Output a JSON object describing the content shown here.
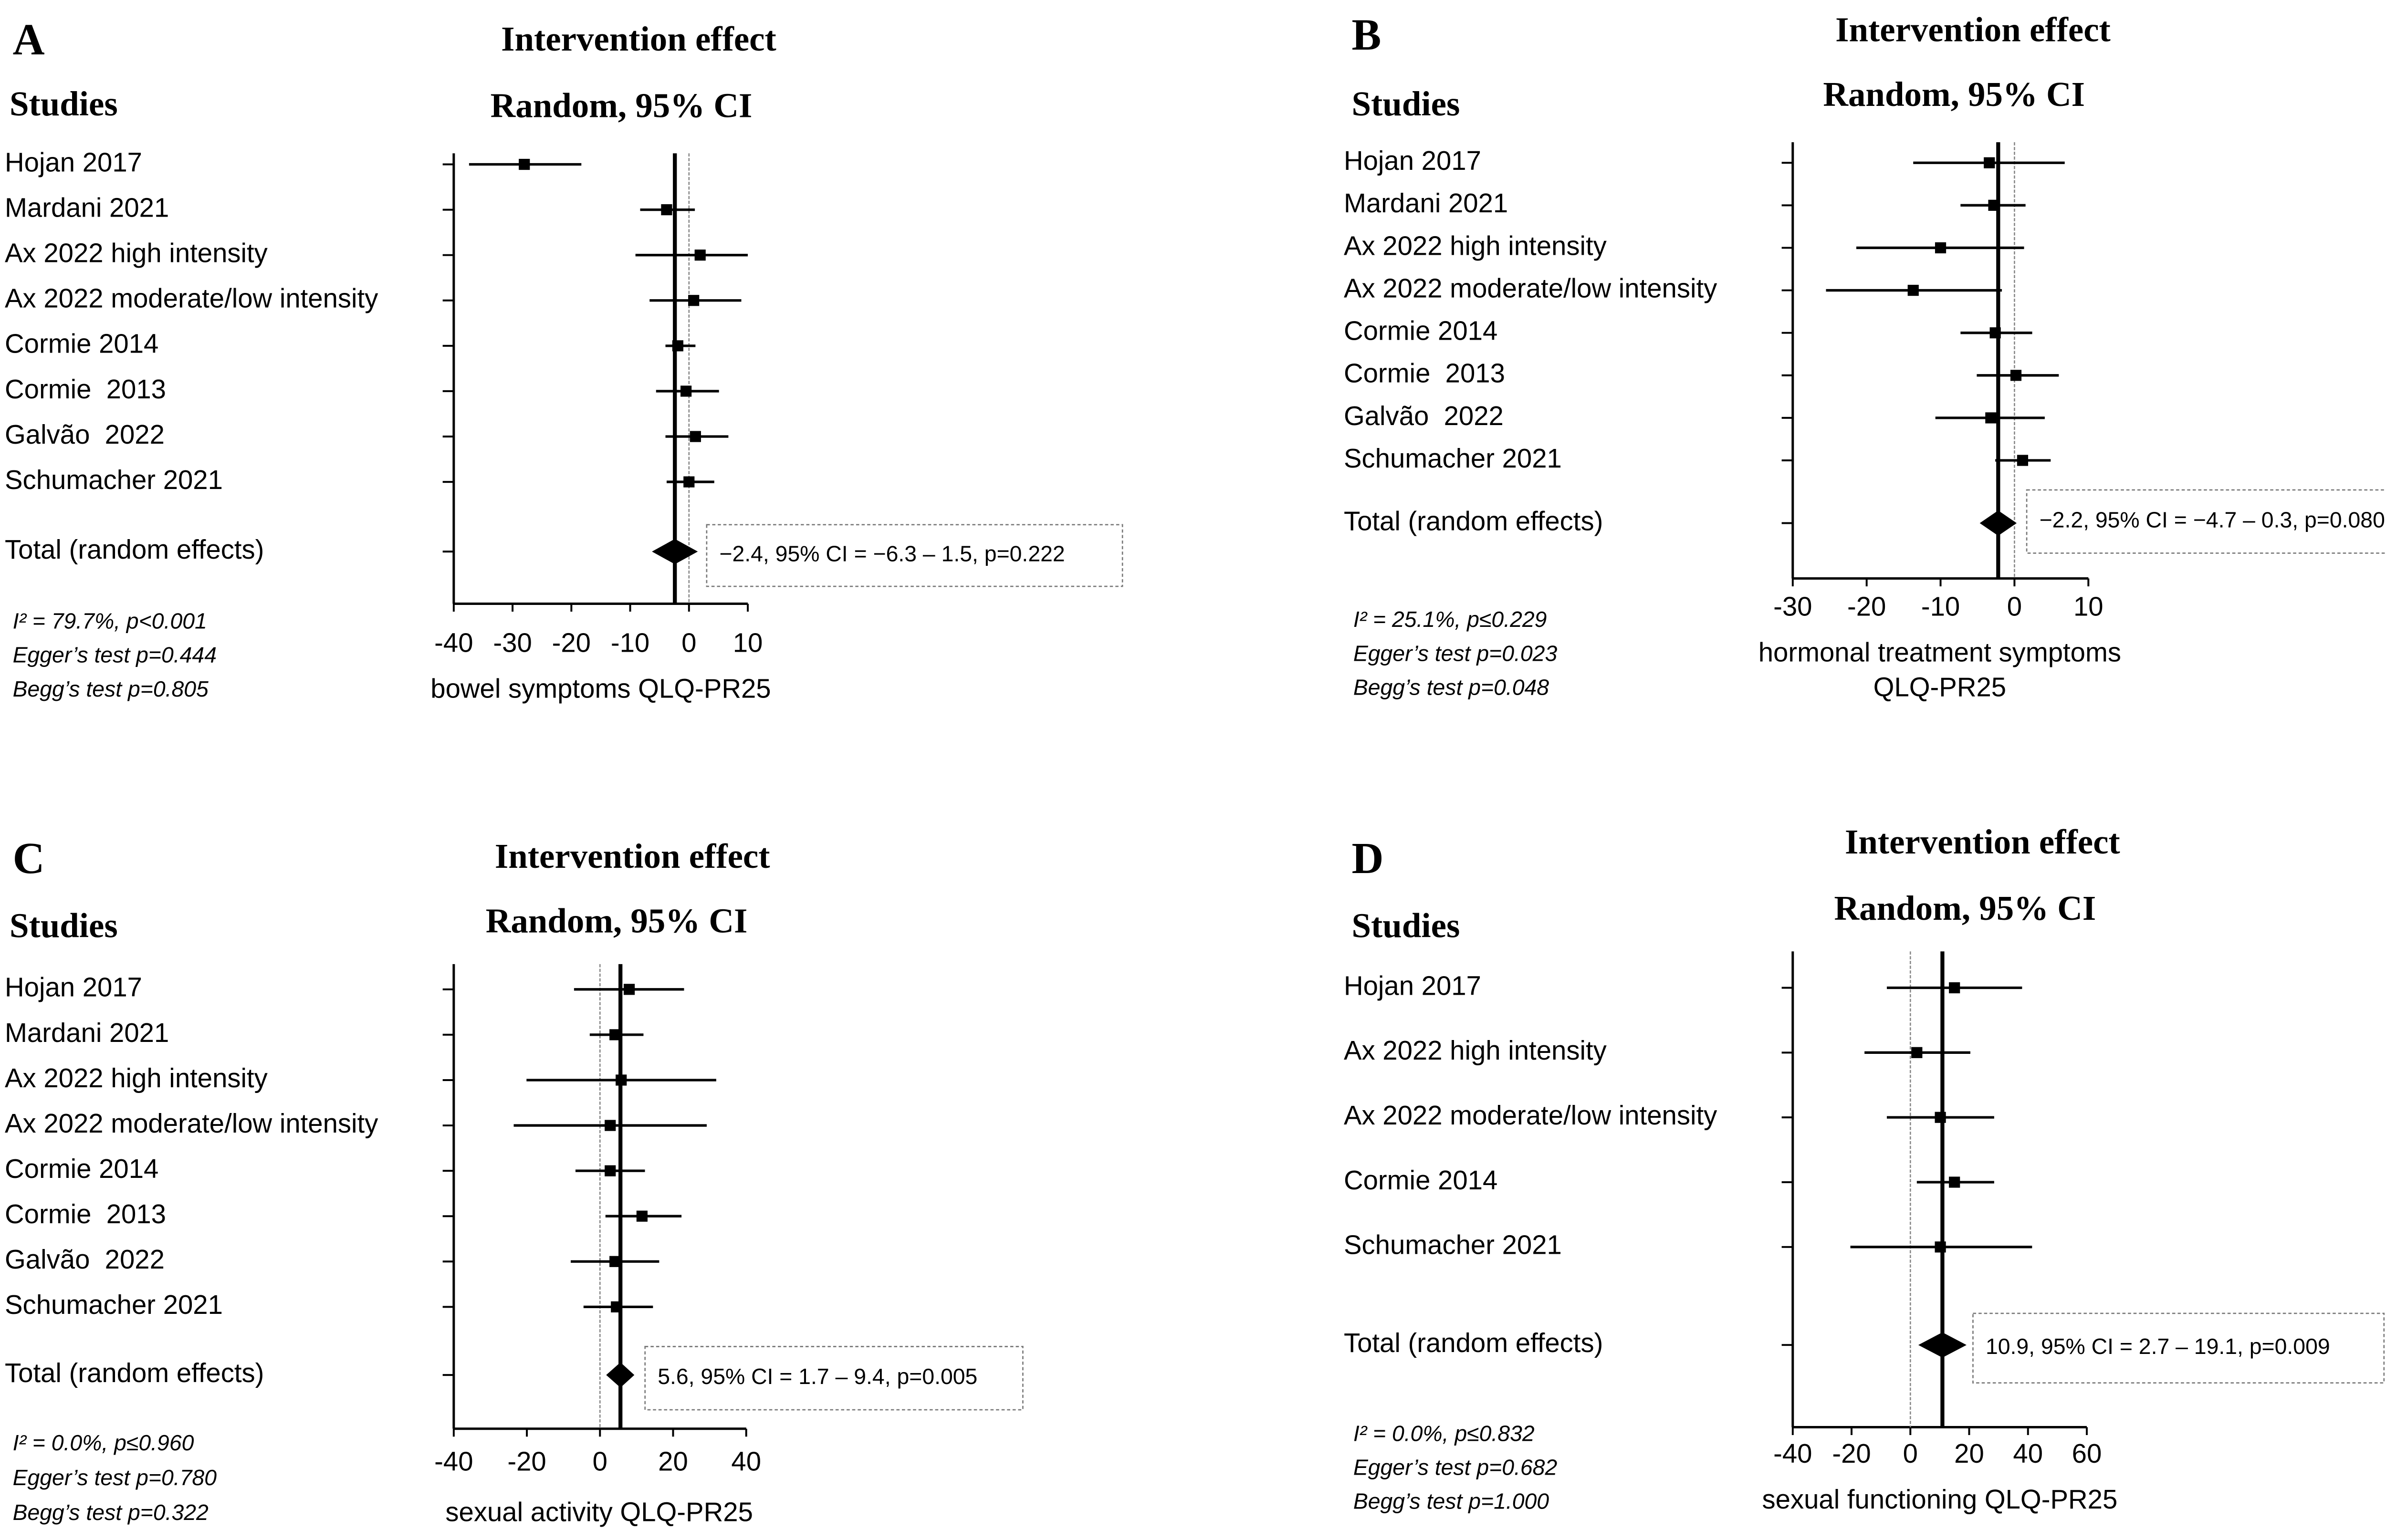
{
  "chart_data": [
    {
      "type": "forest",
      "label": "A",
      "title": "Intervention effect",
      "subtitle": "Random, 95% CI",
      "studies_header": "Studies",
      "categories": [
        "Hojan 2017",
        "Mardani 2021",
        "Ax 2022 high intensity",
        "Ax 2022 moderate/low intensity",
        "Cormie 2014",
        "Cormie  2013",
        "Galvão  2022",
        "Schumacher 2021"
      ],
      "values": [
        -28,
        -3.8,
        1.9,
        0.8,
        -1.9,
        -0.5,
        1.1,
        0
      ],
      "lower": [
        -37.4,
        -8.3,
        -9.1,
        -6.7,
        -4,
        -5.6,
        -4,
        -3.8
      ],
      "upper": [
        -18.3,
        1,
        10,
        8.9,
        1.1,
        5.1,
        6.7,
        4.3
      ],
      "total": {
        "label": "Total (random effects)",
        "value": -2.4,
        "lower": -6.3,
        "upper": 1.5,
        "text": "−2.4, 95% CI = −6.3 – 1.5, p=0.222"
      },
      "stats": [
        "I² = 79.7%, p<0.001",
        "Egger’s test p=0.444",
        "Begg’s test p=0.805"
      ],
      "xlabel": [
        "bowel symptoms QLQ-PR25"
      ],
      "xlim": [
        -40,
        10
      ],
      "xticks": [
        -40,
        -30,
        -20,
        -10,
        0,
        10
      ],
      "color": "#000000"
    },
    {
      "type": "forest",
      "label": "B",
      "title": "Intervention effect",
      "subtitle": "Random, 95% CI",
      "studies_header": "Studies",
      "categories": [
        "Hojan 2017",
        "Mardani 2021",
        "Ax 2022 high intensity",
        "Ax 2022 moderate/low intensity",
        "Cormie 2014",
        "Cormie  2013",
        "Galvão  2022",
        "Schumacher 2021"
      ],
      "values": [
        -3.4,
        -2.8,
        -10,
        -13.7,
        -2.6,
        0.2,
        -3.2,
        1.1
      ],
      "lower": [
        -13.7,
        -7.3,
        -21.4,
        -25.5,
        -7.3,
        -5.1,
        -10.7,
        -2.6
      ],
      "upper": [
        6.8,
        1.5,
        1.3,
        -1.7,
        2.4,
        6,
        4.1,
        4.9
      ],
      "total": {
        "label": "Total (random effects)",
        "value": -2.2,
        "lower": -4.7,
        "upper": 0.3,
        "text": "−2.2, 95% CI = −4.7 – 0.3, p=0.080"
      },
      "stats": [
        "I² = 25.1%, p≤0.229",
        "Egger’s test p=0.023",
        "Begg’s test p=0.048"
      ],
      "xlabel": [
        "hormonal treatment symptoms",
        "QLQ-PR25"
      ],
      "xlim": [
        -30,
        10
      ],
      "xticks": [
        -30,
        -20,
        -10,
        0,
        10
      ],
      "color": "#000000"
    },
    {
      "type": "forest",
      "label": "C",
      "title": "Intervention effect",
      "subtitle": "Random, 95% CI",
      "studies_header": "Studies",
      "categories": [
        "Hojan 2017",
        "Mardani 2021",
        "Ax 2022 high intensity",
        "Ax 2022 moderate/low intensity",
        "Cormie 2014",
        "Cormie  2013",
        "Galvão  2022",
        "Schumacher 2021"
      ],
      "values": [
        8,
        4.1,
        5.8,
        2.8,
        2.8,
        11.5,
        4.1,
        4.5
      ],
      "lower": [
        -7.1,
        -2.8,
        -20.1,
        -23.6,
        -6.7,
        1.5,
        -8,
        -4.5
      ],
      "upper": [
        23,
        11.9,
        31.8,
        29.2,
        12.3,
        22.3,
        16.2,
        14.5
      ],
      "total": {
        "label": "Total (random effects)",
        "value": 5.6,
        "lower": 1.7,
        "upper": 9.4,
        "text": "5.6, 95% CI = 1.7 – 9.4, p=0.005"
      },
      "stats": [
        "I² = 0.0%, p≤0.960",
        "Egger’s test p=0.780",
        "Begg’s test p=0.322"
      ],
      "xlabel": [
        "sexual activity QLQ-PR25"
      ],
      "xlim": [
        -40,
        40
      ],
      "xticks": [
        -40,
        -20,
        0,
        20,
        40
      ],
      "color": "#000000"
    },
    {
      "type": "forest",
      "label": "D",
      "title": "Intervention effect",
      "subtitle": "Random, 95% CI",
      "studies_header": "Studies",
      "categories": [
        "Hojan 2017",
        "Ax 2022 high intensity",
        "Ax 2022 moderate/low intensity",
        "Cormie 2014",
        "Schumacher 2021"
      ],
      "values": [
        15,
        2.2,
        10.2,
        15,
        10.2
      ],
      "lower": [
        -8,
        -15.6,
        -8,
        2.2,
        -20.4
      ],
      "upper": [
        38,
        20.4,
        28.5,
        28.5,
        41.4
      ],
      "total": {
        "label": "Total (random effects)",
        "value": 10.9,
        "lower": 2.7,
        "upper": 19.1,
        "text": "10.9, 95% CI = 2.7 – 19.1, p=0.009"
      },
      "stats": [
        "I² = 0.0%, p≤0.832",
        "Egger’s test p=0.682",
        "Begg’s test p=1.000"
      ],
      "xlabel": [
        "sexual functioning QLQ-PR25"
      ],
      "xlim": [
        -40,
        60
      ],
      "xticks": [
        -40,
        -20,
        0,
        20,
        40,
        60
      ],
      "color": "#000000"
    }
  ]
}
